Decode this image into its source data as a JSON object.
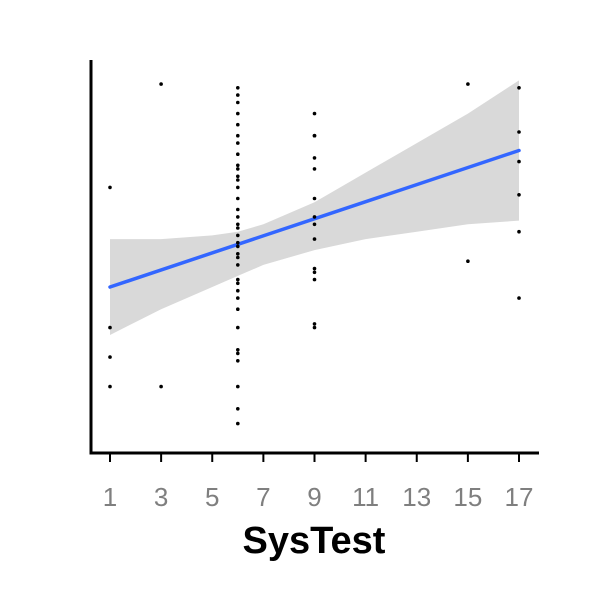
{
  "chart_data": {
    "type": "scatter",
    "title": "",
    "xlabel": "SysTest",
    "ylabel": "",
    "xlim": [
      0.1,
      17.8
    ],
    "ylim": [
      0,
      100
    ],
    "x_ticks": [
      1,
      3,
      5,
      7,
      9,
      11,
      13,
      15,
      17
    ],
    "y_ticks_visible": false,
    "grid": false,
    "legend": "none",
    "points": [
      {
        "x": 1,
        "y": 69
      },
      {
        "x": 1,
        "y": 31
      },
      {
        "x": 1,
        "y": 23
      },
      {
        "x": 1,
        "y": 15
      },
      {
        "x": 3,
        "y": 97
      },
      {
        "x": 3,
        "y": 15
      },
      {
        "x": 6,
        "y": 96
      },
      {
        "x": 6,
        "y": 94
      },
      {
        "x": 6,
        "y": 92
      },
      {
        "x": 6,
        "y": 89
      },
      {
        "x": 6,
        "y": 86
      },
      {
        "x": 6,
        "y": 83
      },
      {
        "x": 6,
        "y": 81
      },
      {
        "x": 6,
        "y": 78
      },
      {
        "x": 6,
        "y": 75
      },
      {
        "x": 6,
        "y": 74
      },
      {
        "x": 6,
        "y": 72
      },
      {
        "x": 6,
        "y": 71
      },
      {
        "x": 6,
        "y": 69
      },
      {
        "x": 6,
        "y": 66
      },
      {
        "x": 6,
        "y": 63
      },
      {
        "x": 6,
        "y": 61
      },
      {
        "x": 6,
        "y": 59
      },
      {
        "x": 6,
        "y": 58
      },
      {
        "x": 6,
        "y": 56
      },
      {
        "x": 6,
        "y": 54
      },
      {
        "x": 6,
        "y": 53
      },
      {
        "x": 6,
        "y": 51
      },
      {
        "x": 6,
        "y": 50
      },
      {
        "x": 6,
        "y": 48
      },
      {
        "x": 6,
        "y": 44
      },
      {
        "x": 6,
        "y": 43
      },
      {
        "x": 6,
        "y": 41
      },
      {
        "x": 6,
        "y": 39
      },
      {
        "x": 6,
        "y": 36
      },
      {
        "x": 6,
        "y": 31
      },
      {
        "x": 6,
        "y": 25
      },
      {
        "x": 6,
        "y": 24
      },
      {
        "x": 6,
        "y": 22
      },
      {
        "x": 6,
        "y": 15
      },
      {
        "x": 6,
        "y": 9
      },
      {
        "x": 6,
        "y": 5
      },
      {
        "x": 9,
        "y": 89
      },
      {
        "x": 9,
        "y": 83
      },
      {
        "x": 9,
        "y": 83
      },
      {
        "x": 9,
        "y": 77
      },
      {
        "x": 9,
        "y": 74
      },
      {
        "x": 9,
        "y": 66
      },
      {
        "x": 9,
        "y": 61
      },
      {
        "x": 9,
        "y": 59
      },
      {
        "x": 9,
        "y": 55
      },
      {
        "x": 9,
        "y": 47
      },
      {
        "x": 9,
        "y": 46
      },
      {
        "x": 9,
        "y": 44
      },
      {
        "x": 9,
        "y": 32
      },
      {
        "x": 9,
        "y": 31
      },
      {
        "x": 15,
        "y": 97
      },
      {
        "x": 15,
        "y": 49
      },
      {
        "x": 17,
        "y": 96
      },
      {
        "x": 17,
        "y": 84
      },
      {
        "x": 17,
        "y": 76
      },
      {
        "x": 17,
        "y": 67
      },
      {
        "x": 17,
        "y": 57
      },
      {
        "x": 17,
        "y": 39
      }
    ],
    "fit": {
      "method": "linear",
      "color": "#3366ff",
      "band_color": "#d9d9d9",
      "line": [
        {
          "x": 1,
          "y": 42
        },
        {
          "x": 17,
          "y": 79
        }
      ],
      "band_lower": [
        {
          "x": 1,
          "y": 29
        },
        {
          "x": 3,
          "y": 36
        },
        {
          "x": 5,
          "y": 42
        },
        {
          "x": 6,
          "y": 45
        },
        {
          "x": 7,
          "y": 48
        },
        {
          "x": 9,
          "y": 52
        },
        {
          "x": 11,
          "y": 55
        },
        {
          "x": 13,
          "y": 57
        },
        {
          "x": 15,
          "y": 59
        },
        {
          "x": 17,
          "y": 60
        }
      ],
      "band_upper": [
        {
          "x": 1,
          "y": 55
        },
        {
          "x": 3,
          "y": 55
        },
        {
          "x": 5,
          "y": 56
        },
        {
          "x": 6,
          "y": 57
        },
        {
          "x": 7,
          "y": 59
        },
        {
          "x": 9,
          "y": 65
        },
        {
          "x": 11,
          "y": 73
        },
        {
          "x": 13,
          "y": 81
        },
        {
          "x": 15,
          "y": 89
        },
        {
          "x": 17,
          "y": 98
        }
      ]
    }
  }
}
